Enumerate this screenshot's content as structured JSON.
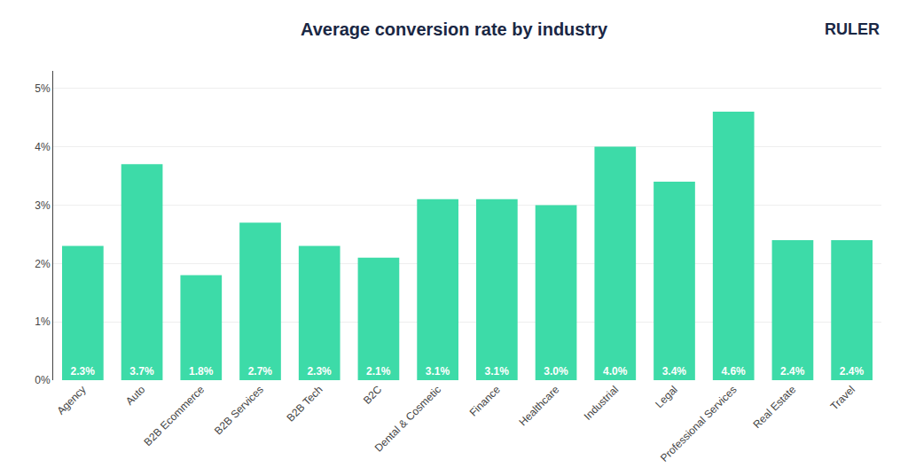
{
  "chart_data": {
    "type": "bar",
    "title": "Average conversion rate by industry",
    "categories": [
      "Agency",
      "Auto",
      "B2B Ecommerce",
      "B2B Services",
      "B2B Tech",
      "B2C",
      "Dental & Cosmetic",
      "Finance",
      "Healthcare",
      "Industrial",
      "Legal",
      "Professional Services",
      "Real Estate",
      "Travel"
    ],
    "values": [
      2.3,
      3.7,
      1.8,
      2.7,
      2.3,
      2.1,
      3.1,
      3.1,
      3.0,
      4.0,
      3.4,
      4.6,
      2.4,
      2.4
    ],
    "value_labels": [
      "2.3%",
      "3.7%",
      "1.8%",
      "2.7%",
      "2.3%",
      "2.1%",
      "3.1%",
      "3.1%",
      "3.0%",
      "4.0%",
      "3.4%",
      "4.6%",
      "2.4%",
      "2.4%"
    ],
    "data_labels": true,
    "color": "#3ddba8",
    "ylim": [
      0,
      5.3
    ],
    "yticks": [
      {
        "value": 0,
        "label": "0%"
      },
      {
        "value": 1,
        "label": "1%"
      },
      {
        "value": 2,
        "label": "2%"
      },
      {
        "value": 3,
        "label": "3%"
      },
      {
        "value": 4,
        "label": "4%"
      },
      {
        "value": 5,
        "label": "5%"
      }
    ],
    "grid": true,
    "annotations": [
      "RULER"
    ]
  }
}
